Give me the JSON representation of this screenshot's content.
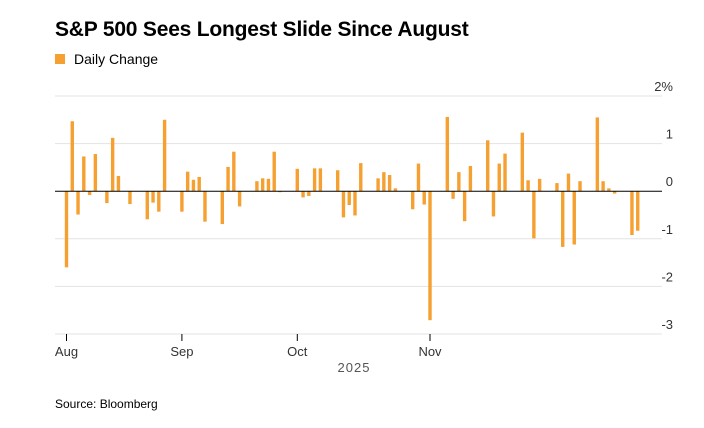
{
  "title": "S&P 500 Sees Longest Slide Since August",
  "legend": {
    "label": "Daily Change",
    "color": "#f5a031"
  },
  "source": "Source: Bloomberg",
  "colors": {
    "bar": "#f5a031",
    "grid": "#e3e3e3",
    "zero": "#000000",
    "axis_text": "#333333"
  },
  "chart_data": {
    "type": "bar",
    "title": "S&P 500 Sees Longest Slide Since August",
    "series": [
      {
        "name": "Daily Change",
        "unit": "%"
      }
    ],
    "ylim": [
      -3,
      2
    ],
    "y_ticks": [
      {
        "value": 2,
        "label": "2%"
      },
      {
        "value": 1,
        "label": "1"
      },
      {
        "value": 0,
        "label": "0"
      },
      {
        "value": -1,
        "label": "-1"
      },
      {
        "value": -2,
        "label": "-2"
      },
      {
        "value": -3,
        "label": "-3"
      }
    ],
    "x_ticks": [
      {
        "index": 0,
        "label": "Aug"
      },
      {
        "index": 20,
        "label": "Sep"
      },
      {
        "index": 40,
        "label": "Oct"
      },
      {
        "index": 63,
        "label": "Nov"
      }
    ],
    "x_year_label": "2025",
    "values": [
      -1.6,
      1.47,
      -0.49,
      0.73,
      -0.08,
      0.78,
      0.0,
      -0.25,
      1.12,
      0.32,
      0.0,
      -0.27,
      0.0,
      0.0,
      -0.59,
      -0.24,
      -0.43,
      1.5,
      0.0,
      0.0,
      -0.43,
      0.41,
      0.24,
      0.3,
      -0.64,
      0.0,
      0.0,
      -0.69,
      0.51,
      0.83,
      -0.32,
      0.0,
      0.0,
      0.21,
      0.27,
      0.26,
      0.83,
      -0.01,
      0.0,
      0.0,
      0.47,
      -0.13,
      -0.1,
      0.48,
      0.48,
      0.0,
      0.0,
      0.44,
      -0.55,
      -0.29,
      -0.51,
      0.59,
      0.0,
      0.0,
      0.27,
      0.4,
      0.34,
      0.06,
      0.0,
      0.0,
      -0.38,
      0.58,
      -0.28,
      -2.71,
      0.0,
      0.0,
      1.56,
      -0.16,
      0.4,
      -0.63,
      0.53,
      0.0,
      0.0,
      1.07,
      -0.53,
      0.58,
      0.79,
      0.0,
      0.0,
      1.23,
      0.23,
      -0.99,
      0.26,
      0.0,
      0.0,
      0.17,
      -1.17,
      0.37,
      -1.12,
      0.21,
      0.0,
      0.0,
      1.55,
      0.21,
      0.06,
      -0.05,
      0.0,
      0.0,
      -0.92,
      -0.83
    ]
  }
}
